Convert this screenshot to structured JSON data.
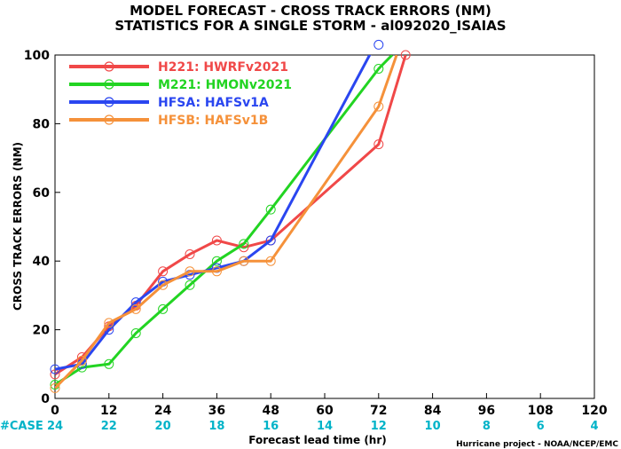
{
  "titles": {
    "line1": "MODEL FORECAST - CROSS TRACK ERRORS (NM)",
    "line2": "STATISTICS FOR A SINGLE STORM - al092020_ISAIAS"
  },
  "footer": {
    "case_label": "#CASE",
    "credit": "Hurricane project - NOAA/NCEP/EMC"
  },
  "chart_data": {
    "type": "line",
    "title": "MODEL FORECAST - CROSS TRACK ERRORS (NM)",
    "subtitle": "STATISTICS FOR A SINGLE STORM - al092020_ISAIAS",
    "xlabel": "Forecast lead time (hr)",
    "ylabel": "CROSS TRACK ERRORS (NM)",
    "xlim": [
      0,
      120
    ],
    "ylim": [
      0,
      100
    ],
    "xticks": [
      0,
      12,
      24,
      36,
      48,
      60,
      72,
      84,
      96,
      108,
      120
    ],
    "yticks": [
      0,
      20,
      40,
      60,
      80,
      100
    ],
    "grid": false,
    "legend_position": "top-left",
    "case_counts": [
      24,
      22,
      20,
      18,
      16,
      14,
      12,
      10,
      8,
      6,
      4
    ],
    "series": [
      {
        "name": "H221: HWRFv2021",
        "color": "#f04848",
        "x": [
          0,
          6,
          12,
          18,
          24,
          30,
          36,
          42,
          48,
          72,
          78
        ],
        "y": [
          7,
          12,
          21,
          27,
          37,
          42,
          46,
          44,
          46,
          74,
          100
        ]
      },
      {
        "name": "M221: HMONv2021",
        "color": "#22d422",
        "x": [
          0,
          6,
          12,
          18,
          24,
          30,
          36,
          42,
          48,
          72,
          75
        ],
        "y": [
          4,
          9,
          10,
          19,
          26,
          33,
          40,
          45,
          55,
          96,
          100
        ]
      },
      {
        "name": "HFSA: HAFSv1A",
        "color": "#2a46f0",
        "x": [
          0,
          6,
          12,
          18,
          24,
          30,
          36,
          42,
          48,
          70,
          72
        ],
        "y": [
          8.5,
          10,
          20,
          28,
          34,
          36,
          38,
          40,
          46,
          100,
          103
        ]
      },
      {
        "name": "HFSB: HAFSv1B",
        "color": "#f5913a",
        "x": [
          0,
          6,
          12,
          18,
          24,
          30,
          36,
          42,
          48,
          72,
          76
        ],
        "y": [
          3,
          11,
          22,
          26,
          33,
          37,
          37,
          40,
          40,
          85,
          100
        ]
      }
    ]
  }
}
